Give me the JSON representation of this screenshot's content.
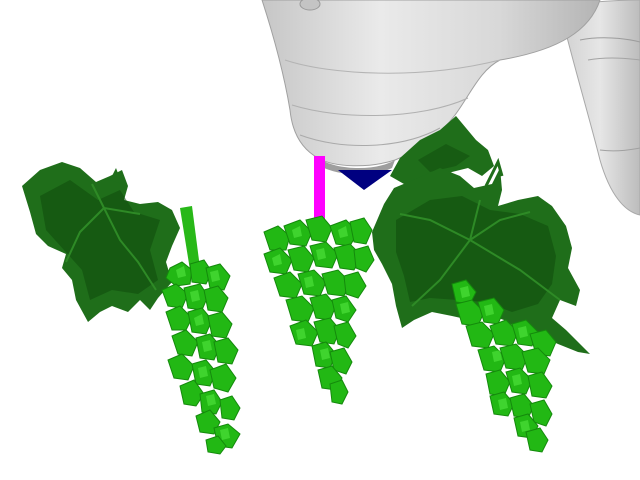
{
  "scene": {
    "background": "#ffffff",
    "robot_color": "#d4d4d4",
    "robot_shadow": "#b8b8b8",
    "robot_highlight": "#ececec",
    "tool_marker_color": "#ff00ff",
    "tip_color": "#000080",
    "leaf_color": "#1f6e1a",
    "leaf_dark": "#0f4a0c",
    "leaf_light": "#2e8a26",
    "grape_color": "#22b814",
    "grape_dark": "#148a0c",
    "grape_light": "#4ce03a",
    "stem_color": "#28b818"
  }
}
